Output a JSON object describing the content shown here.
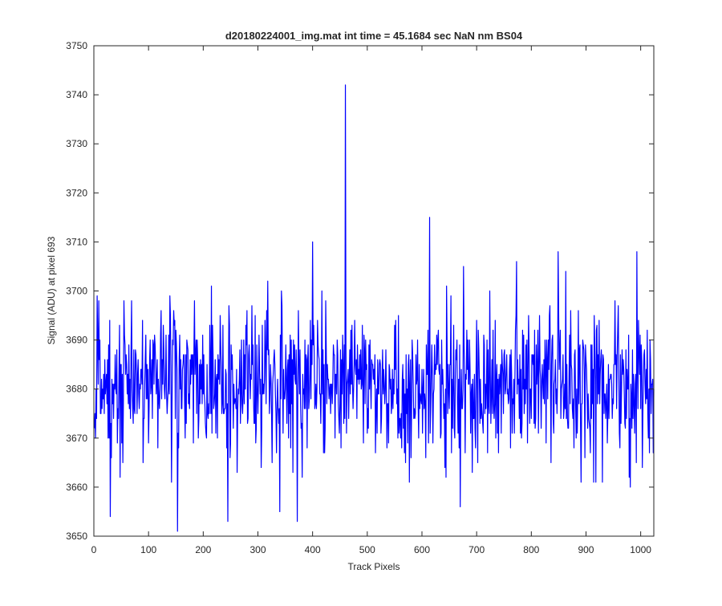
{
  "chart_data": {
    "type": "line",
    "title": "d20180224001_img.mat int time = 45.1684 sec  NaN nm BS04",
    "xlabel": "Track Pixels",
    "ylabel": "Signal (ADU) at pixel 693",
    "xlim": [
      0,
      1024
    ],
    "ylim": [
      3650,
      3750
    ],
    "xticks": [
      0,
      100,
      200,
      300,
      400,
      500,
      600,
      700,
      800,
      900,
      1000
    ],
    "yticks": [
      3650,
      3660,
      3670,
      3680,
      3690,
      3700,
      3710,
      3720,
      3730,
      3740,
      3750
    ],
    "grid": false,
    "legend": "none",
    "series": [
      {
        "color": "#0000ff",
        "x_start": 1,
        "x_step": 1,
        "mean": 3681,
        "noise_sd": 8,
        "y_min": 3651,
        "y_max": 3742,
        "peaks": [
          {
            "x": 460,
            "y": 3742
          },
          {
            "x": 614,
            "y": 3715
          },
          {
            "x": 400,
            "y": 3710
          },
          {
            "x": 849,
            "y": 3708
          },
          {
            "x": 993,
            "y": 3708
          },
          {
            "x": 153,
            "y": 3651
          },
          {
            "x": 245,
            "y": 3653
          },
          {
            "x": 372,
            "y": 3653
          },
          {
            "x": 30,
            "y": 3654
          }
        ]
      }
    ]
  }
}
